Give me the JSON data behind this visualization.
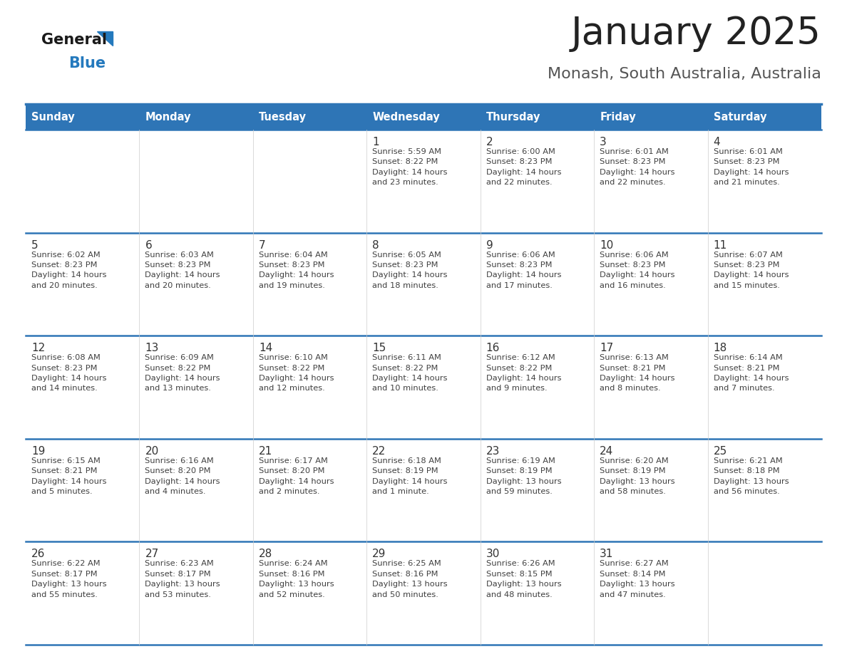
{
  "title": "January 2025",
  "subtitle": "Monash, South Australia, Australia",
  "days_of_week": [
    "Sunday",
    "Monday",
    "Tuesday",
    "Wednesday",
    "Thursday",
    "Friday",
    "Saturday"
  ],
  "header_bg": "#2E75B6",
  "header_text_color": "#FFFFFF",
  "cell_bg": "#FFFFFF",
  "row_line_color": "#2E75B6",
  "text_color": "#404040",
  "day_num_color": "#333333",
  "title_color": "#222222",
  "subtitle_color": "#555555",
  "logo_general_color": "#1a1a1a",
  "logo_blue_color": "#2479BD",
  "weeks": [
    {
      "days": [
        {
          "day": null,
          "info": null
        },
        {
          "day": null,
          "info": null
        },
        {
          "day": null,
          "info": null
        },
        {
          "day": 1,
          "info": "Sunrise: 5:59 AM\nSunset: 8:22 PM\nDaylight: 14 hours\nand 23 minutes."
        },
        {
          "day": 2,
          "info": "Sunrise: 6:00 AM\nSunset: 8:23 PM\nDaylight: 14 hours\nand 22 minutes."
        },
        {
          "day": 3,
          "info": "Sunrise: 6:01 AM\nSunset: 8:23 PM\nDaylight: 14 hours\nand 22 minutes."
        },
        {
          "day": 4,
          "info": "Sunrise: 6:01 AM\nSunset: 8:23 PM\nDaylight: 14 hours\nand 21 minutes."
        }
      ]
    },
    {
      "days": [
        {
          "day": 5,
          "info": "Sunrise: 6:02 AM\nSunset: 8:23 PM\nDaylight: 14 hours\nand 20 minutes."
        },
        {
          "day": 6,
          "info": "Sunrise: 6:03 AM\nSunset: 8:23 PM\nDaylight: 14 hours\nand 20 minutes."
        },
        {
          "day": 7,
          "info": "Sunrise: 6:04 AM\nSunset: 8:23 PM\nDaylight: 14 hours\nand 19 minutes."
        },
        {
          "day": 8,
          "info": "Sunrise: 6:05 AM\nSunset: 8:23 PM\nDaylight: 14 hours\nand 18 minutes."
        },
        {
          "day": 9,
          "info": "Sunrise: 6:06 AM\nSunset: 8:23 PM\nDaylight: 14 hours\nand 17 minutes."
        },
        {
          "day": 10,
          "info": "Sunrise: 6:06 AM\nSunset: 8:23 PM\nDaylight: 14 hours\nand 16 minutes."
        },
        {
          "day": 11,
          "info": "Sunrise: 6:07 AM\nSunset: 8:23 PM\nDaylight: 14 hours\nand 15 minutes."
        }
      ]
    },
    {
      "days": [
        {
          "day": 12,
          "info": "Sunrise: 6:08 AM\nSunset: 8:23 PM\nDaylight: 14 hours\nand 14 minutes."
        },
        {
          "day": 13,
          "info": "Sunrise: 6:09 AM\nSunset: 8:22 PM\nDaylight: 14 hours\nand 13 minutes."
        },
        {
          "day": 14,
          "info": "Sunrise: 6:10 AM\nSunset: 8:22 PM\nDaylight: 14 hours\nand 12 minutes."
        },
        {
          "day": 15,
          "info": "Sunrise: 6:11 AM\nSunset: 8:22 PM\nDaylight: 14 hours\nand 10 minutes."
        },
        {
          "day": 16,
          "info": "Sunrise: 6:12 AM\nSunset: 8:22 PM\nDaylight: 14 hours\nand 9 minutes."
        },
        {
          "day": 17,
          "info": "Sunrise: 6:13 AM\nSunset: 8:21 PM\nDaylight: 14 hours\nand 8 minutes."
        },
        {
          "day": 18,
          "info": "Sunrise: 6:14 AM\nSunset: 8:21 PM\nDaylight: 14 hours\nand 7 minutes."
        }
      ]
    },
    {
      "days": [
        {
          "day": 19,
          "info": "Sunrise: 6:15 AM\nSunset: 8:21 PM\nDaylight: 14 hours\nand 5 minutes."
        },
        {
          "day": 20,
          "info": "Sunrise: 6:16 AM\nSunset: 8:20 PM\nDaylight: 14 hours\nand 4 minutes."
        },
        {
          "day": 21,
          "info": "Sunrise: 6:17 AM\nSunset: 8:20 PM\nDaylight: 14 hours\nand 2 minutes."
        },
        {
          "day": 22,
          "info": "Sunrise: 6:18 AM\nSunset: 8:19 PM\nDaylight: 14 hours\nand 1 minute."
        },
        {
          "day": 23,
          "info": "Sunrise: 6:19 AM\nSunset: 8:19 PM\nDaylight: 13 hours\nand 59 minutes."
        },
        {
          "day": 24,
          "info": "Sunrise: 6:20 AM\nSunset: 8:19 PM\nDaylight: 13 hours\nand 58 minutes."
        },
        {
          "day": 25,
          "info": "Sunrise: 6:21 AM\nSunset: 8:18 PM\nDaylight: 13 hours\nand 56 minutes."
        }
      ]
    },
    {
      "days": [
        {
          "day": 26,
          "info": "Sunrise: 6:22 AM\nSunset: 8:17 PM\nDaylight: 13 hours\nand 55 minutes."
        },
        {
          "day": 27,
          "info": "Sunrise: 6:23 AM\nSunset: 8:17 PM\nDaylight: 13 hours\nand 53 minutes."
        },
        {
          "day": 28,
          "info": "Sunrise: 6:24 AM\nSunset: 8:16 PM\nDaylight: 13 hours\nand 52 minutes."
        },
        {
          "day": 29,
          "info": "Sunrise: 6:25 AM\nSunset: 8:16 PM\nDaylight: 13 hours\nand 50 minutes."
        },
        {
          "day": 30,
          "info": "Sunrise: 6:26 AM\nSunset: 8:15 PM\nDaylight: 13 hours\nand 48 minutes."
        },
        {
          "day": 31,
          "info": "Sunrise: 6:27 AM\nSunset: 8:14 PM\nDaylight: 13 hours\nand 47 minutes."
        },
        {
          "day": null,
          "info": null
        }
      ]
    }
  ]
}
